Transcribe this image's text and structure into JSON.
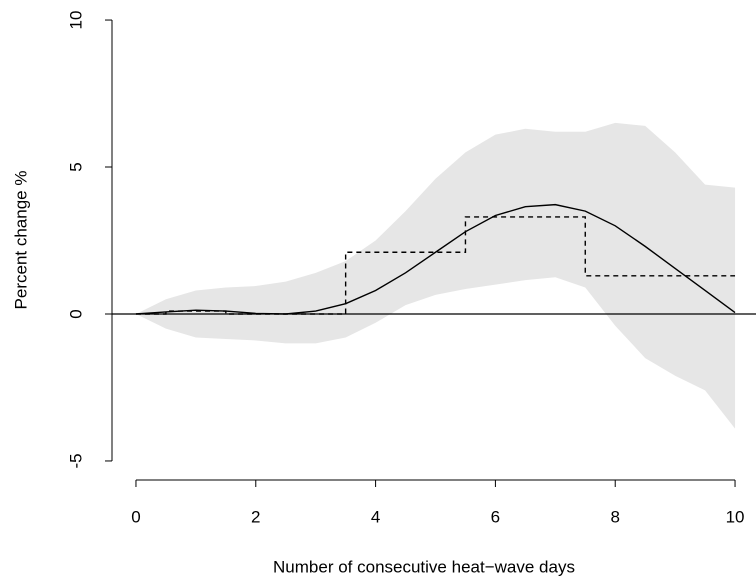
{
  "chart_data": {
    "type": "line",
    "x_label": "Number of consecutive heat−wave days",
    "y_label": "Percent change %",
    "x": [
      0,
      0.5,
      1,
      1.5,
      2,
      2.5,
      3,
      3.5,
      4,
      4.5,
      5,
      5.5,
      6,
      6.5,
      7,
      7.5,
      8,
      8.5,
      9,
      9.5,
      10
    ],
    "band": {
      "color": "#e6e6e6",
      "upper": [
        0,
        0.5,
        0.8,
        0.9,
        0.95,
        1.1,
        1.4,
        1.8,
        2.5,
        3.5,
        4.6,
        5.5,
        6.1,
        6.3,
        6.2,
        6.2,
        6.5,
        6.4,
        5.5,
        4.4,
        4.3
      ],
      "lower": [
        0,
        -0.5,
        -0.8,
        -0.85,
        -0.9,
        -1.0,
        -1.0,
        -0.8,
        -0.3,
        0.3,
        0.65,
        0.85,
        1.0,
        1.15,
        1.25,
        0.9,
        -0.4,
        -1.5,
        -2.1,
        -2.6,
        -3.9
      ]
    },
    "series": [
      {
        "color": "#000000",
        "dash": false,
        "values": [
          0,
          0.07,
          0.13,
          0.1,
          0.02,
          0,
          0.1,
          0.35,
          0.8,
          1.4,
          2.1,
          2.8,
          3.35,
          3.65,
          3.72,
          3.5,
          3.0,
          2.3,
          1.55,
          0.8,
          0.05
        ]
      },
      {
        "color": "#000000",
        "dash": true,
        "x": [
          0,
          0.5,
          0.5,
          1.5,
          1.5,
          3.5,
          3.5,
          5.5,
          5.5,
          7.5,
          7.5,
          10
        ],
        "values": [
          0,
          0,
          0.1,
          0.1,
          0,
          0,
          2.1,
          2.1,
          3.3,
          3.3,
          1.3,
          1.3
        ]
      }
    ],
    "hline": 0,
    "xlim": [
      -0.4,
      10.4
    ],
    "ylim": [
      -5.6,
      10.6
    ],
    "xticks": [
      0,
      2,
      4,
      6,
      8,
      10
    ],
    "yticks": [
      -5,
      0,
      5,
      10
    ]
  }
}
